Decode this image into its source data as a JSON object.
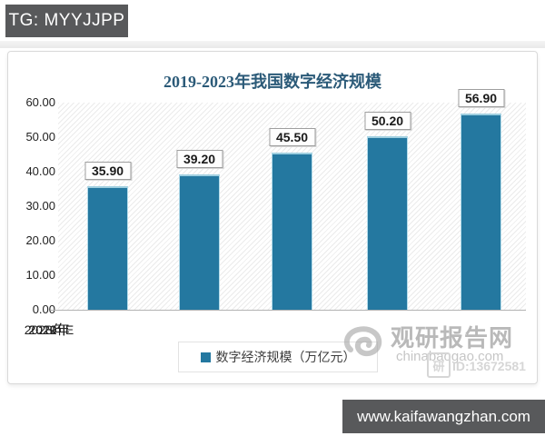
{
  "header": {
    "tg_label": "TG: MYYJJPP"
  },
  "footer": {
    "site_label": "www.kaifawangzhan.com"
  },
  "chart": {
    "title": "2019-2023年我国数字经济规模",
    "legend_label": "数字经济规模（万亿元）",
    "bar_color": "#2478a0",
    "title_color": "#2b5a78"
  },
  "chart_data": {
    "type": "bar",
    "title": "2019-2023年我国数字经济规模",
    "categories": [
      "2019年",
      "2020年",
      "2021年",
      "2022年",
      "2023年E"
    ],
    "values": [
      35.9,
      39.2,
      45.5,
      50.2,
      56.9
    ],
    "value_labels": [
      "35.90",
      "39.20",
      "45.50",
      "50.20",
      "56.90"
    ],
    "series_name": "数字经济规模（万亿元）",
    "unit": "万亿元",
    "ylim": [
      0,
      60
    ],
    "ytick_labels": [
      "60.00",
      "50.00",
      "40.00",
      "30.00",
      "20.00",
      "10.00",
      "0.00"
    ],
    "grid": false,
    "legend_position": "bottom"
  },
  "watermark": {
    "site_name": "观研报告网",
    "site_url": "chinabaogao.com",
    "id_label": "ID:13672581"
  }
}
